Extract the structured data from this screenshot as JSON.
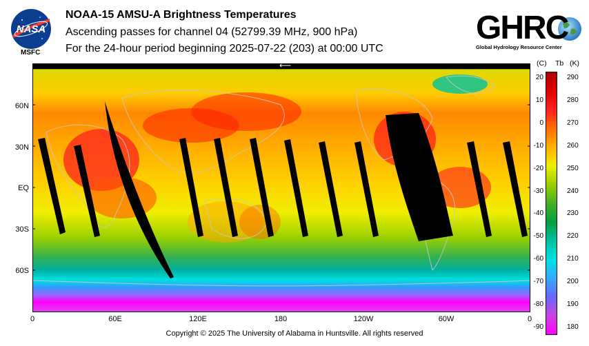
{
  "title": "NOAA-15 AMSU-A Brightness Temperatures",
  "subtitle1": "Ascending passes for channel 04 (52799.39 MHz, 900 hPa)",
  "subtitle2": "For the 24-hour period beginning 2025-07-22 (203) at 00:00 UTC",
  "logos": {
    "nasa_text": "NASA",
    "msfc_label": "MSFC",
    "ghrc_text": "GHRC",
    "ghrc_subtitle": "Global Hydrology Resource Center"
  },
  "map": {
    "lat_labels": [
      "60N",
      "30N",
      "EQ",
      "30S",
      "60S"
    ],
    "lon_labels": [
      "0",
      "60E",
      "120E",
      "180",
      "120W",
      "60W",
      "0"
    ],
    "arrow": "⟵"
  },
  "colorbar": {
    "unit_c": "(C)",
    "unit_tb": "Tb",
    "unit_k": "(K)",
    "celsius_ticks": [
      "20",
      "10",
      "0",
      "-10",
      "-20",
      "-30",
      "-40",
      "-50",
      "-60",
      "-70",
      "-80",
      "-90"
    ],
    "kelvin_ticks": [
      "290",
      "280",
      "270",
      "260",
      "250",
      "240",
      "230",
      "220",
      "210",
      "200",
      "190",
      "180"
    ],
    "colors": [
      "#ff00ff",
      "#cc44dd",
      "#6666ff",
      "#33aaff",
      "#00e0e0",
      "#00c0a0",
      "#00a040",
      "#44b020",
      "#99d000",
      "#eeee00",
      "#ffb000",
      "#ff7000",
      "#ff2020",
      "#e00000",
      "#b00000"
    ]
  },
  "copyright": "Copyright © 2025 The University of Alabama in Huntsville.  All rights reserved"
}
